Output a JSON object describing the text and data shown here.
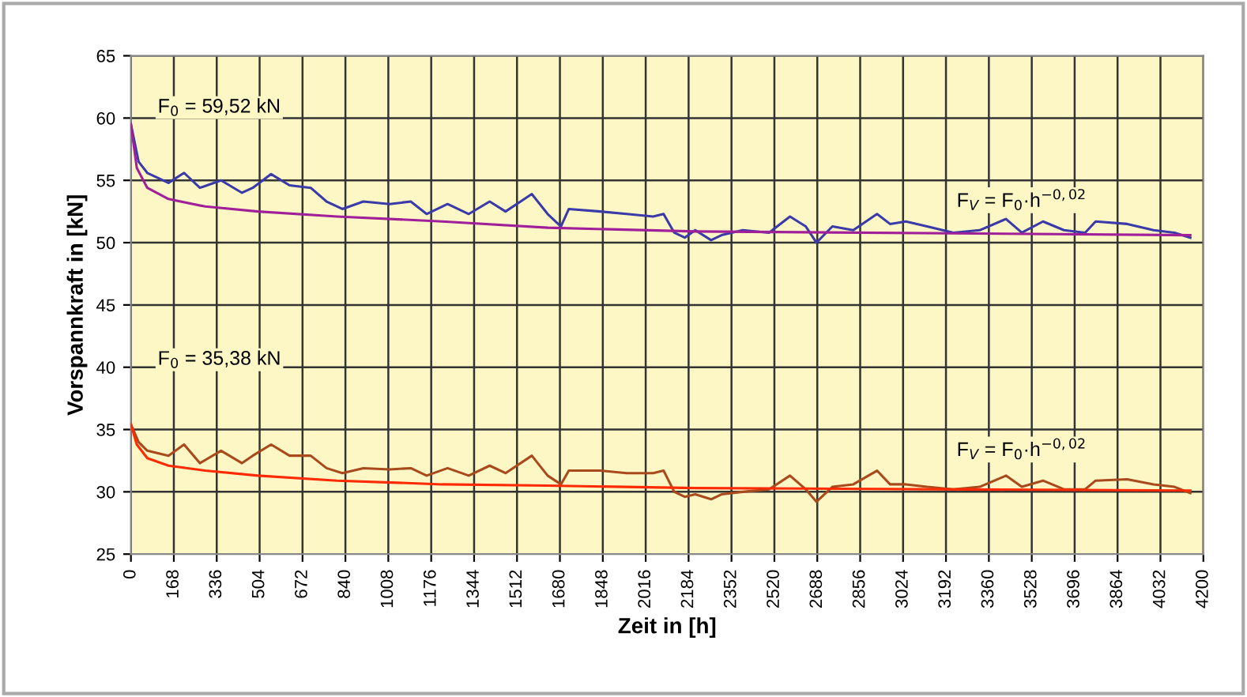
{
  "chart_data": {
    "type": "line",
    "xlabel": "Zeit in [h]",
    "ylabel": "Vorspannkraft in [kN]",
    "xlim": [
      0,
      4200
    ],
    "xticks": [
      0,
      168,
      336,
      504,
      672,
      840,
      1008,
      1176,
      1344,
      1512,
      1680,
      1848,
      2016,
      2184,
      2352,
      2520,
      2688,
      2856,
      3024,
      3192,
      3360,
      3528,
      3696,
      3864,
      4032,
      4200
    ],
    "ylim": [
      25,
      65
    ],
    "yticks": [
      25,
      30,
      35,
      40,
      45,
      50,
      55,
      60,
      65
    ],
    "grid": true,
    "legend": false,
    "marker": "none",
    "line_style": "solid",
    "annotations": [
      "F$_{0}$ = 59,52 kN",
      "F$_{V}$ = F$_{0}$·h$^{−0,02}$",
      "F$_{0}$ = 35,38 kN",
      "F$_{V}$ = F$_{0}$·h$^{−0,02}$"
    ],
    "series": [
      {
        "color": "#3a3aa8",
        "x": [
          0,
          30,
          64,
          147,
          208,
          270,
          353,
          435,
          477,
          549,
          621,
          704,
          766,
          828,
          910,
          1013,
          1096,
          1158,
          1240,
          1323,
          1405,
          1467,
          1570,
          1632,
          1684,
          1715,
          1838,
          1942,
          2045,
          2086,
          2128,
          2169,
          2210,
          2272,
          2313,
          2396,
          2499,
          2581,
          2643,
          2685,
          2747,
          2829,
          2922,
          2973,
          3035,
          3118,
          3221,
          3324,
          3427,
          3489,
          3572,
          3654,
          3737,
          3778,
          3902,
          4005,
          4087,
          4149
        ],
        "values": [
          59.5,
          56.5,
          55.6,
          54.8,
          55.6,
          54.4,
          55.0,
          54.0,
          54.4,
          55.5,
          54.6,
          54.4,
          53.3,
          52.7,
          53.3,
          53.1,
          53.3,
          52.3,
          53.1,
          52.3,
          53.3,
          52.5,
          53.9,
          52.3,
          51.3,
          52.7,
          52.5,
          52.3,
          52.1,
          52.3,
          50.8,
          50.4,
          51.0,
          50.2,
          50.6,
          51.0,
          50.8,
          52.1,
          51.3,
          50.0,
          51.3,
          51.0,
          52.3,
          51.5,
          51.7,
          51.3,
          50.8,
          51.0,
          51.9,
          50.8,
          51.7,
          51.0,
          50.8,
          51.7,
          51.5,
          51.0,
          50.8,
          50.4
        ]
      },
      {
        "color": "#a0209a",
        "x": [
          0,
          23,
          64,
          147,
          291,
          497,
          807,
          1219,
          1632,
          2210,
          4149
        ],
        "values": [
          59.5,
          56.0,
          54.4,
          53.5,
          52.9,
          52.5,
          52.1,
          51.7,
          51.2,
          50.9,
          50.6
        ]
      },
      {
        "color": "#a84a1c",
        "x": [
          0,
          30,
          64,
          147,
          208,
          270,
          353,
          435,
          477,
          549,
          621,
          704,
          766,
          828,
          910,
          1013,
          1096,
          1158,
          1240,
          1323,
          1405,
          1467,
          1570,
          1632,
          1684,
          1715,
          1838,
          1942,
          2045,
          2086,
          2128,
          2169,
          2210,
          2272,
          2313,
          2396,
          2499,
          2581,
          2643,
          2685,
          2747,
          2829,
          2922,
          2973,
          3035,
          3118,
          3221,
          3324,
          3427,
          3489,
          3572,
          3654,
          3737,
          3778,
          3902,
          4005,
          4087,
          4149
        ],
        "values": [
          35.4,
          34.0,
          33.3,
          32.9,
          33.8,
          32.3,
          33.3,
          32.3,
          32.9,
          33.8,
          32.9,
          32.9,
          31.9,
          31.5,
          31.9,
          31.8,
          31.9,
          31.3,
          31.9,
          31.3,
          32.1,
          31.5,
          32.9,
          31.3,
          30.6,
          31.7,
          31.7,
          31.5,
          31.5,
          31.7,
          30.0,
          29.6,
          29.8,
          29.4,
          29.8,
          30.0,
          30.2,
          31.3,
          30.2,
          29.2,
          30.4,
          30.6,
          31.7,
          30.6,
          30.6,
          30.4,
          30.2,
          30.4,
          31.3,
          30.4,
          30.9,
          30.2,
          30.2,
          30.9,
          31.0,
          30.6,
          30.4,
          29.9
        ]
      },
      {
        "color": "#ff2a00",
        "x": [
          0,
          23,
          64,
          147,
          291,
          497,
          807,
          1219,
          1632,
          2210,
          4149
        ],
        "values": [
          35.4,
          33.8,
          32.7,
          32.1,
          31.7,
          31.3,
          30.9,
          30.6,
          30.5,
          30.3,
          30.1
        ]
      }
    ]
  }
}
